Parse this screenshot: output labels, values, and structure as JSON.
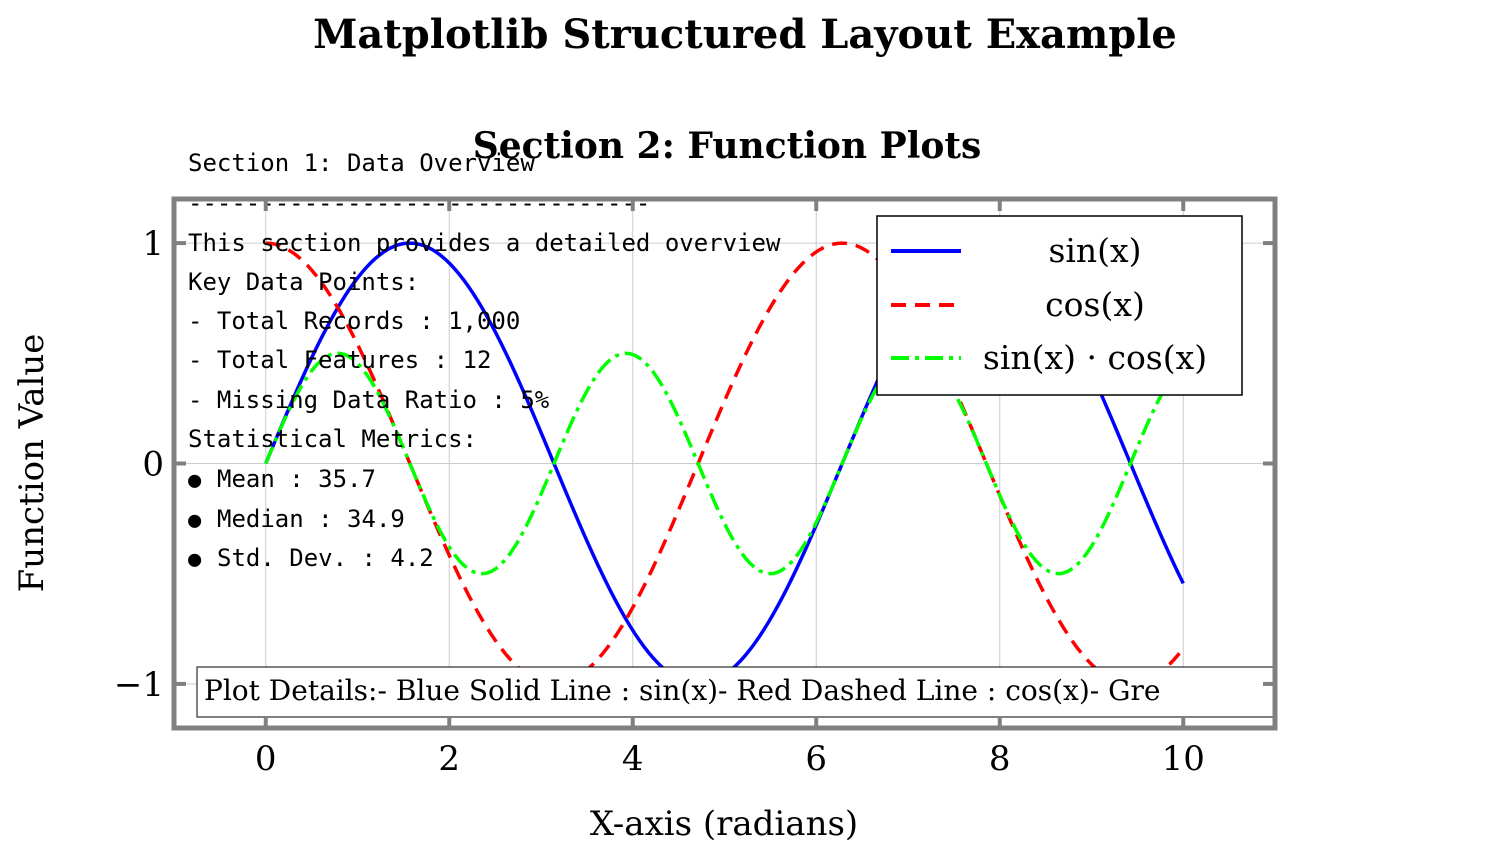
{
  "figure": {
    "suptitle": "Matplotlib Structured Layout Example"
  },
  "section1": {
    "title": "Section 1: Data Overview",
    "divider": "--------------------------------",
    "intro": "This section provides a detailed overview",
    "key_points_heading": "Key Data Points:",
    "key_points": [
      "- Total Records : 1,000",
      "- Total Features : 12",
      "- Missing Data Ratio : 5%"
    ],
    "metrics_heading": "Statistical Metrics:",
    "metrics": [
      "Mean : 35.7",
      "Median : 34.9",
      "Std. Dev. : 4.2"
    ],
    "bullet": "●"
  },
  "chart_data": {
    "type": "line",
    "title": "Section 2: Function Plots",
    "xlabel": "X-axis (radians)",
    "ylabel": "Function Value",
    "xlim": [
      -1.0,
      11.0
    ],
    "ylim": [
      -1.2,
      1.2
    ],
    "x_range": [
      0,
      10
    ],
    "num_points": 200,
    "xticks": [
      0,
      2,
      4,
      6,
      8,
      10
    ],
    "xtick_labels": [
      "0",
      "2",
      "4",
      "6",
      "8",
      "10"
    ],
    "yticks": [
      -1,
      0,
      1
    ],
    "ytick_labels": [
      "−1",
      "0",
      "1"
    ],
    "grid": true,
    "legend_position": "upper-right",
    "series": [
      {
        "name": "sin(x)",
        "func": "sin",
        "color": "#0000ff",
        "style": "solid",
        "legend_text": "sin(x)"
      },
      {
        "name": "cos(x)",
        "func": "cos",
        "color": "#ff0000",
        "style": "dashed",
        "legend_text": "cos(x)"
      },
      {
        "name": "sin(x)·cos(x)",
        "func": "sincos",
        "color": "#00ff00",
        "style": "dashdot",
        "legend_text": "sin(x) · cos(x)"
      }
    ],
    "annotation": "Plot Details:- Blue Solid Line : sin(x)- Red Dashed Line : cos(x)- Gre"
  },
  "colors": {
    "frame": "#808080",
    "grid": "#cccccc",
    "text": "#000000"
  }
}
